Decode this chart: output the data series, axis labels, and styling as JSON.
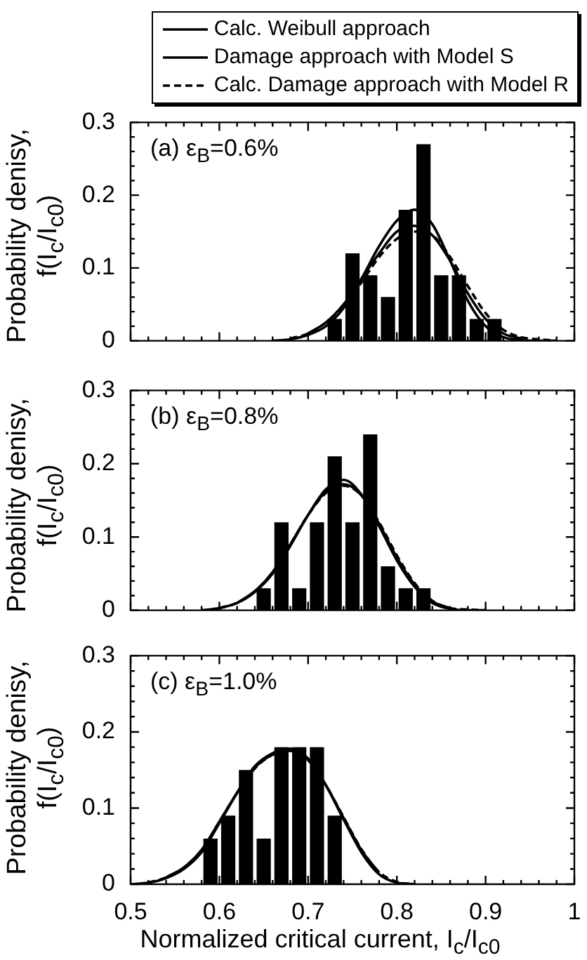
{
  "chart_data": [
    {
      "type": "histogram",
      "ylabel": "Probability denisy, f(I$_{c}$/I$_{c0}$)",
      "annotations": [
        "(a) ε$_{B}$=0.6%"
      ],
      "legend": "top right",
      "tick_labels": "y",
      "xlim": [
        0.5,
        1.0
      ],
      "xticks": [
        0.5,
        {
          "value": 0.52,
          "label": null
        },
        {
          "value": 0.54,
          "label": null
        },
        {
          "value": 0.56,
          "label": null
        },
        {
          "value": 0.58,
          "label": null
        },
        0.6,
        {
          "value": 0.62,
          "label": null
        },
        {
          "value": 0.64,
          "label": null
        },
        {
          "value": 0.66,
          "label": null
        },
        {
          "value": 0.68,
          "label": null
        },
        0.7,
        {
          "value": 0.72,
          "label": null
        },
        {
          "value": 0.74,
          "label": null
        },
        {
          "value": 0.76,
          "label": null
        },
        {
          "value": 0.78,
          "label": null
        },
        0.8,
        {
          "value": 0.82,
          "label": null
        },
        {
          "value": 0.84,
          "label": null
        },
        {
          "value": 0.86,
          "label": null
        },
        {
          "value": 0.88,
          "label": null
        },
        0.9,
        {
          "value": 0.92,
          "label": null
        },
        {
          "value": 0.94,
          "label": null
        },
        {
          "value": 0.96,
          "label": null
        },
        {
          "value": 0.98,
          "label": null
        },
        1
      ],
      "ylim": [
        0,
        0.3
      ],
      "yticks": [
        0,
        {
          "value": 0.02,
          "label": null
        },
        {
          "value": 0.04,
          "label": null
        },
        {
          "value": 0.06,
          "label": null
        },
        {
          "value": 0.08,
          "label": null
        },
        0.1,
        {
          "value": 0.12,
          "label": null
        },
        {
          "value": 0.14,
          "label": null
        },
        {
          "value": 0.16,
          "label": null
        },
        {
          "value": 0.18,
          "label": null
        },
        0.2,
        {
          "value": 0.22,
          "label": null
        },
        {
          "value": 0.24,
          "label": null
        },
        {
          "value": 0.26,
          "label": null
        },
        {
          "value": 0.28,
          "label": null
        },
        0.3
      ],
      "series": [
        {
          "type": "histogram",
          "color": "#000000",
          "bins": [
            0.72,
            0.74,
            0.76,
            0.78,
            0.8,
            0.82,
            0.84,
            0.86,
            0.88,
            0.9,
            0.92
          ],
          "values": [
            0.03,
            0.12,
            0.09,
            0.06,
            0.18,
            0.27,
            0.09,
            0.09,
            0.03,
            0.03
          ]
        },
        {
          "type": "line",
          "name": "Calc. Weibull approach",
          "color": "#000000",
          "line_style": "solid",
          "x": [
            0.66,
            0.68,
            0.7,
            0.72,
            0.74,
            0.76,
            0.78,
            0.8,
            0.82,
            0.84,
            0.86,
            0.88,
            0.9,
            0.92,
            0.94,
            0.96,
            0.98
          ],
          "values": [
            0,
            0.002,
            0.008,
            0.02,
            0.045,
            0.085,
            0.13,
            0.165,
            0.18,
            0.16,
            0.11,
            0.055,
            0.02,
            0.005,
            0.001,
            0,
            0
          ]
        },
        {
          "type": "line",
          "name": "Damage approach with Model S",
          "color": "#000000",
          "line_style": "solid",
          "x": [
            0.7,
            0.72,
            0.74,
            0.76,
            0.78,
            0.8,
            0.82,
            0.84,
            0.86,
            0.88,
            0.9,
            0.92,
            0.94
          ],
          "values": [
            0.01,
            0.025,
            0.05,
            0.085,
            0.12,
            0.15,
            0.158,
            0.145,
            0.11,
            0.065,
            0.03,
            0.01,
            0.003
          ]
        },
        {
          "type": "line",
          "name": "Calc. Damage approach with Model R",
          "color": "#000000",
          "line_style": "dashed",
          "x": [
            0.68,
            0.7,
            0.72,
            0.74,
            0.76,
            0.78,
            0.8,
            0.82,
            0.84,
            0.86,
            0.88,
            0.9,
            0.92,
            0.94,
            0.96,
            0.98
          ],
          "values": [
            0.003,
            0.01,
            0.025,
            0.048,
            0.08,
            0.115,
            0.14,
            0.15,
            0.145,
            0.115,
            0.075,
            0.038,
            0.015,
            0.005,
            0.002,
            0
          ]
        }
      ]
    },
    {
      "type": "histogram",
      "ylabel": "Probability denisy, f(I$_{c}$/I$_{c0}$)",
      "annotations": [
        "(b) ε$_{B}$=0.8%"
      ],
      "tick_labels": "y",
      "xlim": [
        0.5,
        1.0
      ],
      "xticks": [
        0.5,
        {
          "value": 0.52,
          "label": null
        },
        {
          "value": 0.54,
          "label": null
        },
        {
          "value": 0.56,
          "label": null
        },
        {
          "value": 0.58,
          "label": null
        },
        0.6,
        {
          "value": 0.62,
          "label": null
        },
        {
          "value": 0.64,
          "label": null
        },
        {
          "value": 0.66,
          "label": null
        },
        {
          "value": 0.68,
          "label": null
        },
        0.7,
        {
          "value": 0.72,
          "label": null
        },
        {
          "value": 0.74,
          "label": null
        },
        {
          "value": 0.76,
          "label": null
        },
        {
          "value": 0.78,
          "label": null
        },
        0.8,
        {
          "value": 0.82,
          "label": null
        },
        {
          "value": 0.84,
          "label": null
        },
        {
          "value": 0.86,
          "label": null
        },
        {
          "value": 0.88,
          "label": null
        },
        0.9,
        {
          "value": 0.92,
          "label": null
        },
        {
          "value": 0.94,
          "label": null
        },
        {
          "value": 0.96,
          "label": null
        },
        {
          "value": 0.98,
          "label": null
        },
        1
      ],
      "ylim": [
        0,
        0.3
      ],
      "yticks": [
        0,
        {
          "value": 0.02,
          "label": null
        },
        {
          "value": 0.04,
          "label": null
        },
        {
          "value": 0.06,
          "label": null
        },
        {
          "value": 0.08,
          "label": null
        },
        0.1,
        {
          "value": 0.12,
          "label": null
        },
        {
          "value": 0.14,
          "label": null
        },
        {
          "value": 0.16,
          "label": null
        },
        {
          "value": 0.18,
          "label": null
        },
        0.2,
        {
          "value": 0.22,
          "label": null
        },
        {
          "value": 0.24,
          "label": null
        },
        {
          "value": 0.26,
          "label": null
        },
        {
          "value": 0.28,
          "label": null
        },
        0.3
      ],
      "series": [
        {
          "type": "histogram",
          "color": "#000000",
          "bins": [
            0.64,
            0.66,
            0.68,
            0.7,
            0.72,
            0.74,
            0.76,
            0.78,
            0.8,
            0.82,
            0.84
          ],
          "values": [
            0.03,
            0.12,
            0.03,
            0.12,
            0.21,
            0.12,
            0.24,
            0.06,
            0.03,
            0.03
          ]
        },
        {
          "type": "line",
          "color": "#000000",
          "line_style": "solid",
          "x": [
            0.58,
            0.6,
            0.62,
            0.64,
            0.66,
            0.68,
            0.7,
            0.72,
            0.74,
            0.76,
            0.78,
            0.8,
            0.82,
            0.84,
            0.86,
            0.88,
            0.9
          ],
          "values": [
            0,
            0.003,
            0.01,
            0.025,
            0.05,
            0.088,
            0.13,
            0.165,
            0.178,
            0.158,
            0.115,
            0.068,
            0.032,
            0.01,
            0.002,
            0,
            0
          ]
        },
        {
          "type": "line",
          "color": "#000000",
          "line_style": "solid",
          "x": [
            0.62,
            0.64,
            0.66,
            0.68,
            0.7,
            0.72,
            0.74,
            0.76,
            0.78,
            0.8,
            0.82,
            0.84,
            0.86
          ],
          "values": [
            0.01,
            0.026,
            0.052,
            0.09,
            0.13,
            0.162,
            0.172,
            0.157,
            0.118,
            0.072,
            0.035,
            0.012,
            0.003
          ]
        },
        {
          "type": "line",
          "color": "#000000",
          "line_style": "dashed",
          "x": [
            0.6,
            0.62,
            0.64,
            0.66,
            0.68,
            0.7,
            0.72,
            0.74,
            0.76,
            0.78,
            0.8,
            0.82,
            0.84,
            0.86,
            0.88,
            0.9
          ],
          "values": [
            0.003,
            0.01,
            0.026,
            0.052,
            0.09,
            0.13,
            0.16,
            0.17,
            0.157,
            0.12,
            0.075,
            0.037,
            0.013,
            0.003,
            0.001,
            0
          ]
        }
      ]
    },
    {
      "type": "histogram",
      "ylabel": "Probability denisy, f(I$_{c}$/I$_{c0}$)",
      "xlabel": "Normalized critical current, I$_{c}$/I$_{c0}$",
      "annotations": [
        "(c) ε$_{B}$=1.0%"
      ],
      "xlim": [
        0.5,
        1.0
      ],
      "xticks": [
        0.5,
        {
          "value": 0.52,
          "label": null
        },
        {
          "value": 0.54,
          "label": null
        },
        {
          "value": 0.56,
          "label": null
        },
        {
          "value": 0.58,
          "label": null
        },
        0.6,
        {
          "value": 0.62,
          "label": null
        },
        {
          "value": 0.64,
          "label": null
        },
        {
          "value": 0.66,
          "label": null
        },
        {
          "value": 0.68,
          "label": null
        },
        0.7,
        {
          "value": 0.72,
          "label": null
        },
        {
          "value": 0.74,
          "label": null
        },
        {
          "value": 0.76,
          "label": null
        },
        {
          "value": 0.78,
          "label": null
        },
        0.8,
        {
          "value": 0.82,
          "label": null
        },
        {
          "value": 0.84,
          "label": null
        },
        {
          "value": 0.86,
          "label": null
        },
        {
          "value": 0.88,
          "label": null
        },
        0.9,
        {
          "value": 0.92,
          "label": null
        },
        {
          "value": 0.94,
          "label": null
        },
        {
          "value": 0.96,
          "label": null
        },
        {
          "value": 0.98,
          "label": null
        },
        1
      ],
      "ylim": [
        0,
        0.3
      ],
      "yticks": [
        0,
        {
          "value": 0.02,
          "label": null
        },
        {
          "value": 0.04,
          "label": null
        },
        {
          "value": 0.06,
          "label": null
        },
        {
          "value": 0.08,
          "label": null
        },
        0.1,
        {
          "value": 0.12,
          "label": null
        },
        {
          "value": 0.14,
          "label": null
        },
        {
          "value": 0.16,
          "label": null
        },
        {
          "value": 0.18,
          "label": null
        },
        0.2,
        {
          "value": 0.22,
          "label": null
        },
        {
          "value": 0.24,
          "label": null
        },
        {
          "value": 0.26,
          "label": null
        },
        {
          "value": 0.28,
          "label": null
        },
        0.3
      ],
      "series": [
        {
          "type": "histogram",
          "color": "#000000",
          "bins": [
            0.58,
            0.6,
            0.62,
            0.64,
            0.66,
            0.68,
            0.7,
            0.72,
            0.74
          ],
          "values": [
            0.06,
            0.09,
            0.15,
            0.06,
            0.18,
            0.18,
            0.18,
            0.09
          ]
        },
        {
          "type": "line",
          "color": "#000000",
          "line_style": "solid",
          "x": [
            0.5,
            0.52,
            0.54,
            0.56,
            0.58,
            0.6,
            0.62,
            0.64,
            0.66,
            0.68,
            0.7,
            0.72,
            0.74,
            0.76,
            0.78,
            0.8,
            0.82
          ],
          "values": [
            0,
            0.002,
            0.008,
            0.02,
            0.042,
            0.08,
            0.12,
            0.155,
            0.172,
            0.178,
            0.165,
            0.13,
            0.085,
            0.042,
            0.013,
            0.002,
            0
          ]
        },
        {
          "type": "line",
          "color": "#000000",
          "line_style": "solid",
          "x": [
            0.54,
            0.56,
            0.58,
            0.6,
            0.62,
            0.64,
            0.66,
            0.68,
            0.7,
            0.72,
            0.74,
            0.76,
            0.78
          ],
          "values": [
            0.009,
            0.022,
            0.045,
            0.082,
            0.12,
            0.153,
            0.17,
            0.175,
            0.163,
            0.13,
            0.087,
            0.045,
            0.015
          ]
        },
        {
          "type": "line",
          "color": "#000000",
          "line_style": "dashed",
          "x": [
            0.52,
            0.54,
            0.56,
            0.58,
            0.6,
            0.62,
            0.64,
            0.66,
            0.68,
            0.7,
            0.72,
            0.74,
            0.76,
            0.78,
            0.8,
            0.82
          ],
          "values": [
            0.002,
            0.009,
            0.022,
            0.045,
            0.082,
            0.12,
            0.152,
            0.17,
            0.175,
            0.163,
            0.13,
            0.088,
            0.046,
            0.016,
            0.003,
            0
          ]
        }
      ]
    }
  ]
}
